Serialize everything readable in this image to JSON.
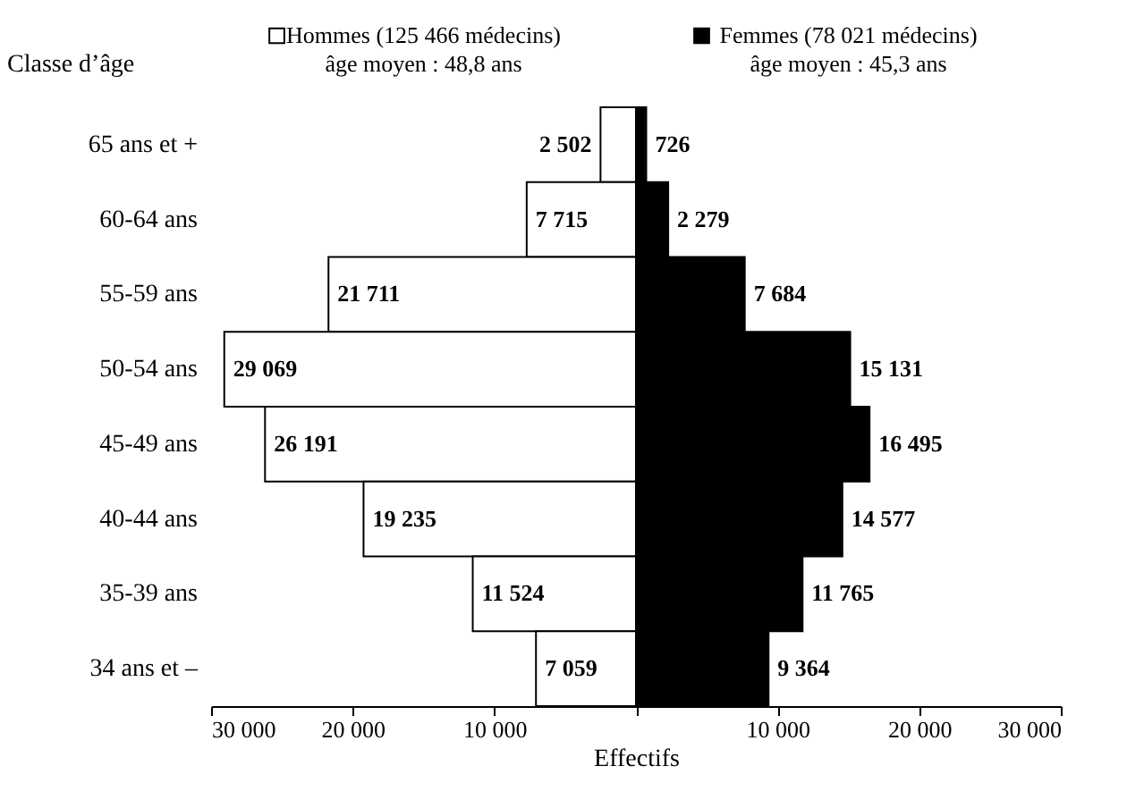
{
  "chart_data": {
    "type": "bar",
    "orientation": "horizontal",
    "ylabel": "Classe d’âge",
    "xlabel": "Effectifs",
    "categories": [
      "65 ans et +",
      "60-64 ans",
      "55-59 ans",
      "50-54 ans",
      "45-49 ans",
      "40-44 ans",
      "35-39 ans",
      "34 ans et –"
    ],
    "series": [
      {
        "name": "Hommes (125 466 médecins)",
        "color": "#ffffff",
        "values": [
          2502,
          7715,
          21711,
          29069,
          26191,
          19235,
          11524,
          7059
        ],
        "base": [
          -2502,
          -7715,
          -21711,
          -29069,
          -26191,
          -19235,
          -11524,
          -7059
        ],
        "value_labels": [
          "2 502",
          "7 715",
          "21 711",
          "29 069",
          "26 191",
          "19 235",
          "11 524",
          "7 059"
        ]
      },
      {
        "name": "Femmes (78 021 médecins)",
        "color": "#000000",
        "values": [
          726,
          2279,
          7684,
          15131,
          16495,
          14577,
          11765,
          9364
        ],
        "base": [
          0,
          0,
          0,
          0,
          0,
          0,
          0,
          0
        ],
        "value_labels": [
          "726",
          "2 279",
          "7 684",
          "15 131",
          "16 495",
          "14 577",
          "11 765",
          "9 364"
        ]
      }
    ],
    "annotations": [
      "âge moyen : 48,8 ans",
      "âge moyen : 45,3 ans"
    ],
    "xlim": [
      -30000,
      30000
    ],
    "xticks": [
      {
        "value": -30000,
        "label": "30 000"
      },
      {
        "value": -20000,
        "label": "20 000"
      },
      {
        "value": -10000,
        "label": "10 000"
      },
      {
        "value": 0,
        "label": null
      },
      {
        "value": 10000,
        "label": "10 000"
      },
      {
        "value": 20000,
        "label": "20 000"
      },
      {
        "value": 30000,
        "label": "30 000"
      }
    ],
    "grid": false,
    "legend": "top"
  }
}
